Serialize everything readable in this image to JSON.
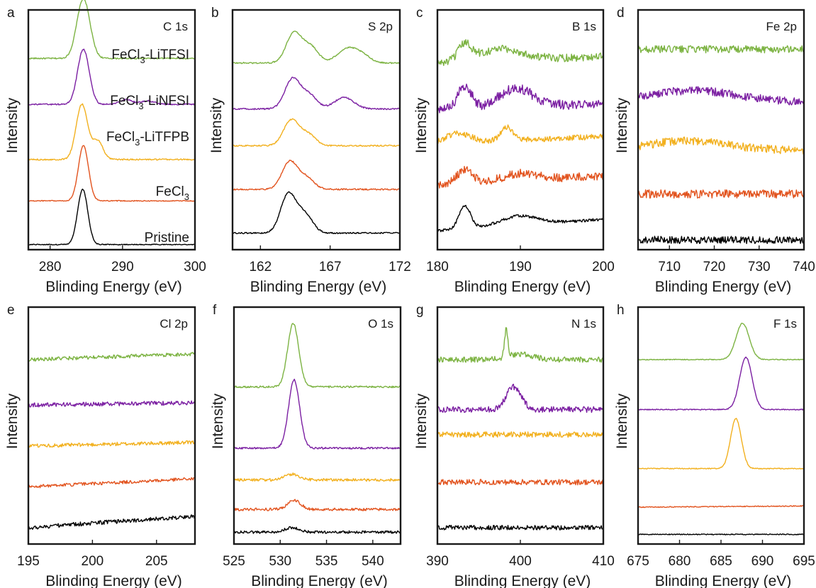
{
  "figure": {
    "ylabel": "Intensity",
    "xlabel": "Blinding Energy (eV)"
  },
  "colors": {
    "LiTFSI": "#7cb342",
    "LiNFSI": "#7b1fa2",
    "LiTFPB": "#f2b01e",
    "FeCl3": "#e2531e",
    "Pristine": "#000000"
  },
  "chart_data": [
    {
      "type": "line",
      "label": "a",
      "title": "C 1s",
      "xlim": [
        277,
        300
      ],
      "xticks": [
        280,
        290,
        300
      ],
      "annotations": [
        {
          "text": "FeCl",
          "sub": "3",
          "after": "-LiTFSI",
          "series": "LiTFSI"
        },
        {
          "text": "FeCl",
          "sub": "3",
          "after": "-LiNFSI",
          "series": "LiNFSI"
        },
        {
          "text": "FeCl",
          "sub": "3",
          "after": "-LiTFPB",
          "series": "LiTFPB"
        },
        {
          "text": "FeCl",
          "sub": "3",
          "after": "",
          "series": "FeCl3"
        },
        {
          "text": "Pristine",
          "sub": "",
          "after": "",
          "series": "Pristine"
        }
      ],
      "series": [
        {
          "key": "LiTFSI",
          "baseline": 0.82,
          "noise": 0.003,
          "peaks": [
            [
              284.6,
              0.9,
              0.26
            ]
          ]
        },
        {
          "key": "LiNFSI",
          "baseline": 0.62,
          "noise": 0.003,
          "peaks": [
            [
              284.6,
              0.8,
              0.24
            ],
            [
              290.5,
              0.9,
              0.02
            ],
            [
              293.5,
              0.9,
              0.015
            ]
          ]
        },
        {
          "key": "LiTFPB",
          "baseline": 0.38,
          "noise": 0.003,
          "peaks": [
            [
              284.4,
              0.8,
              0.24
            ],
            [
              286.6,
              0.7,
              0.08
            ]
          ]
        },
        {
          "key": "FeCl3",
          "baseline": 0.2,
          "noise": 0.002,
          "peaks": [
            [
              284.6,
              0.7,
              0.24
            ]
          ]
        },
        {
          "key": "Pristine",
          "baseline": 0.01,
          "noise": 0.002,
          "peaks": [
            [
              284.5,
              0.7,
              0.24
            ]
          ]
        }
      ]
    },
    {
      "type": "line",
      "label": "b",
      "title": "S 2p",
      "xlim": [
        160,
        172
      ],
      "xticks": [
        162,
        167,
        172
      ],
      "series": [
        {
          "key": "LiTFSI",
          "baseline": 0.8,
          "noise": 0.003,
          "peaks": [
            [
              164.4,
              0.55,
              0.13
            ],
            [
              165.6,
              0.55,
              0.07
            ],
            [
              168.2,
              0.7,
              0.06
            ],
            [
              169.3,
              0.6,
              0.03
            ]
          ]
        },
        {
          "key": "LiNFSI",
          "baseline": 0.6,
          "noise": 0.003,
          "peaks": [
            [
              164.3,
              0.55,
              0.13
            ],
            [
              165.5,
              0.55,
              0.06
            ],
            [
              168.0,
              0.7,
              0.05
            ]
          ]
        },
        {
          "key": "LiTFPB",
          "baseline": 0.44,
          "noise": 0.003,
          "peaks": [
            [
              164.2,
              0.55,
              0.11
            ],
            [
              165.4,
              0.55,
              0.05
            ]
          ]
        },
        {
          "key": "FeCl3",
          "baseline": 0.25,
          "noise": 0.003,
          "peaks": [
            [
              164.1,
              0.55,
              0.12
            ],
            [
              165.3,
              0.55,
              0.05
            ]
          ]
        },
        {
          "key": "Pristine",
          "baseline": 0.06,
          "noise": 0.003,
          "peaks": [
            [
              164.0,
              0.55,
              0.17
            ],
            [
              165.2,
              0.55,
              0.08
            ]
          ]
        }
      ]
    },
    {
      "type": "line",
      "label": "c",
      "title": "B 1s",
      "xlim": [
        180,
        200
      ],
      "xticks": [
        180,
        190,
        200
      ],
      "series": [
        {
          "key": "LiTFSI",
          "baseline": 0.8,
          "noise": 0.018,
          "peaks": [
            [
              183.3,
              0.8,
              0.07
            ],
            [
              187.5,
              2.5,
              0.05
            ]
          ],
          "slope": 0.03
        },
        {
          "key": "LiNFSI",
          "baseline": 0.6,
          "noise": 0.022,
          "peaks": [
            [
              183.3,
              0.8,
              0.1
            ],
            [
              189.5,
              2.0,
              0.08
            ]
          ],
          "slope": 0.02
        },
        {
          "key": "LiTFPB",
          "baseline": 0.45,
          "noise": 0.012,
          "peaks": [
            [
              182.5,
              1.5,
              0.04
            ],
            [
              188.3,
              0.7,
              0.06
            ]
          ],
          "slope": 0.03
        },
        {
          "key": "FeCl3",
          "baseline": 0.27,
          "noise": 0.018,
          "peaks": [
            [
              183.3,
              0.9,
              0.06
            ],
            [
              190,
              2,
              0.03
            ]
          ],
          "slope": 0.04
        },
        {
          "key": "Pristine",
          "baseline": 0.07,
          "noise": 0.006,
          "peaks": [
            [
              183.3,
              0.7,
              0.1
            ],
            [
              189.8,
              2.2,
              0.04
            ]
          ],
          "slope": 0.05
        }
      ]
    },
    {
      "type": "line",
      "label": "d",
      "title": "Fe 2p",
      "xlim": [
        703,
        740
      ],
      "xticks": [
        710,
        720,
        730,
        740
      ],
      "series": [
        {
          "key": "LiTFSI",
          "baseline": 0.86,
          "noise": 0.016,
          "peaks": [],
          "slope": 0
        },
        {
          "key": "LiNFSI",
          "baseline": 0.63,
          "noise": 0.018,
          "peaks": [
            [
              715,
              10,
              0.05
            ]
          ],
          "slope": 0
        },
        {
          "key": "LiTFPB",
          "baseline": 0.42,
          "noise": 0.018,
          "peaks": [
            [
              714,
              9,
              0.04
            ]
          ],
          "slope": 0
        },
        {
          "key": "FeCl3",
          "baseline": 0.23,
          "noise": 0.018,
          "peaks": [],
          "slope": 0
        },
        {
          "key": "Pristine",
          "baseline": 0.03,
          "noise": 0.016,
          "peaks": [],
          "slope": 0
        }
      ]
    },
    {
      "type": "line",
      "label": "e",
      "title": "Cl 2p",
      "xlim": [
        195,
        208
      ],
      "xticks": [
        195,
        200,
        205
      ],
      "series": [
        {
          "key": "LiTFSI",
          "baseline": 0.8,
          "noise": 0.008,
          "peaks": [],
          "slope": 0.025
        },
        {
          "key": "LiNFSI",
          "baseline": 0.6,
          "noise": 0.009,
          "peaks": [],
          "slope": 0.01
        },
        {
          "key": "LiTFPB",
          "baseline": 0.42,
          "noise": 0.008,
          "peaks": [],
          "slope": 0.015
        },
        {
          "key": "FeCl3",
          "baseline": 0.24,
          "noise": 0.007,
          "peaks": [],
          "slope": 0.035
        },
        {
          "key": "Pristine",
          "baseline": 0.06,
          "noise": 0.009,
          "peaks": [],
          "slope": 0.05
        }
      ]
    },
    {
      "type": "line",
      "label": "f",
      "title": "O 1s",
      "xlim": [
        525,
        543
      ],
      "xticks": [
        525,
        530,
        535,
        540
      ],
      "series": [
        {
          "key": "LiTFSI",
          "baseline": 0.68,
          "noise": 0.004,
          "peaks": [
            [
              531.4,
              0.6,
              0.28
            ]
          ],
          "slope": 0
        },
        {
          "key": "LiNFSI",
          "baseline": 0.41,
          "noise": 0.004,
          "peaks": [
            [
              531.5,
              0.6,
              0.3
            ]
          ],
          "slope": 0
        },
        {
          "key": "LiTFPB",
          "baseline": 0.27,
          "noise": 0.006,
          "peaks": [
            [
              531.3,
              0.8,
              0.025
            ]
          ],
          "slope": 0
        },
        {
          "key": "FeCl3",
          "baseline": 0.14,
          "noise": 0.006,
          "peaks": [
            [
              531.5,
              0.7,
              0.04
            ]
          ],
          "slope": 0
        },
        {
          "key": "Pristine",
          "baseline": 0.04,
          "noise": 0.006,
          "peaks": [
            [
              531.3,
              0.8,
              0.02
            ]
          ],
          "slope": 0
        }
      ]
    },
    {
      "type": "line",
      "label": "g",
      "title": "N 1s",
      "xlim": [
        390,
        410
      ],
      "xticks": [
        390,
        400,
        410
      ],
      "series": [
        {
          "key": "LiTFSI",
          "baseline": 0.8,
          "noise": 0.012,
          "peaks": [
            [
              398.3,
              0.2,
              0.12
            ],
            [
              400,
              1.5,
              0.025
            ]
          ],
          "slope": 0
        },
        {
          "key": "LiNFSI",
          "baseline": 0.58,
          "noise": 0.013,
          "peaks": [
            [
              399.2,
              0.9,
              0.1
            ]
          ],
          "slope": 0
        },
        {
          "key": "LiTFPB",
          "baseline": 0.47,
          "noise": 0.012,
          "peaks": [],
          "slope": 0
        },
        {
          "key": "FeCl3",
          "baseline": 0.26,
          "noise": 0.012,
          "peaks": [],
          "slope": 0
        },
        {
          "key": "Pristine",
          "baseline": 0.06,
          "noise": 0.01,
          "peaks": [],
          "slope": 0
        }
      ]
    },
    {
      "type": "line",
      "label": "h",
      "title": "F 1s",
      "xlim": [
        675,
        695
      ],
      "xticks": [
        675,
        680,
        685,
        690,
        695
      ],
      "series": [
        {
          "key": "LiTFSI",
          "baseline": 0.8,
          "noise": 0.002,
          "peaks": [
            [
              687.6,
              0.8,
              0.16
            ]
          ],
          "slope": 0
        },
        {
          "key": "LiNFSI",
          "baseline": 0.58,
          "noise": 0.002,
          "peaks": [
            [
              688,
              0.75,
              0.23
            ]
          ],
          "slope": 0
        },
        {
          "key": "LiTFPB",
          "baseline": 0.32,
          "noise": 0.002,
          "peaks": [
            [
              686.8,
              0.65,
              0.22
            ]
          ],
          "slope": 0
        },
        {
          "key": "FeCl3",
          "baseline": 0.15,
          "noise": 0.002,
          "peaks": [],
          "slope": 0.005
        },
        {
          "key": "Pristine",
          "baseline": 0.03,
          "noise": 0.002,
          "peaks": [],
          "slope": 0
        }
      ]
    }
  ]
}
